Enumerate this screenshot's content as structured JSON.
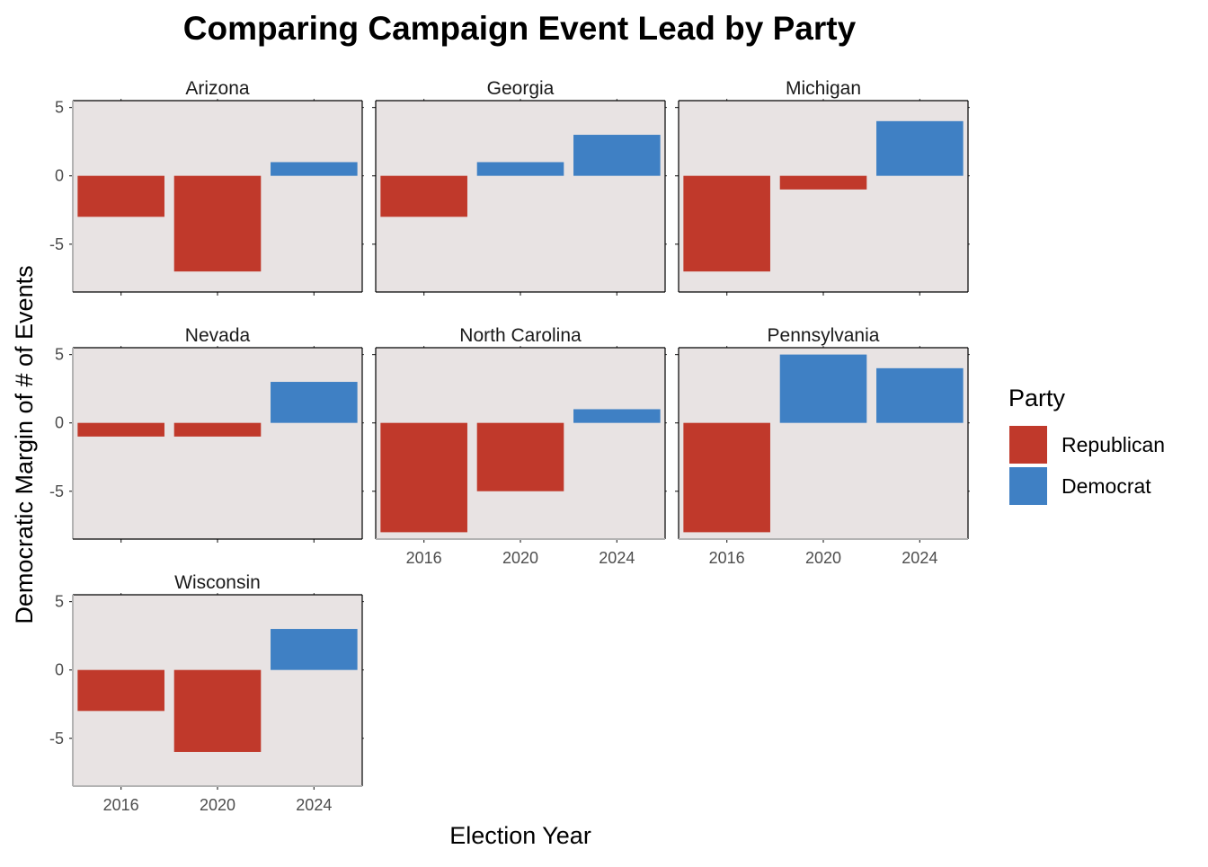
{
  "chart_data": {
    "type": "bar",
    "layout": "faceted",
    "title": "Comparing Campaign Event Lead by Party",
    "xlabel": "Election Year",
    "ylabel": "Democratic Margin of # of Events",
    "categories": [
      "2016",
      "2020",
      "2024"
    ],
    "y_ticks": [
      -5,
      0,
      5
    ],
    "ylim": [
      -8.5,
      5.5
    ],
    "grid": false,
    "legend": {
      "title": "Party",
      "position": "right",
      "entries": [
        {
          "label": "Republican",
          "color": "#c0392b"
        },
        {
          "label": "Democrat",
          "color": "#3f80c4"
        }
      ]
    },
    "panel_background": "#e8e3e3",
    "facets": [
      {
        "name": "Arizona",
        "values": [
          -3,
          -7,
          1
        ]
      },
      {
        "name": "Georgia",
        "values": [
          -3,
          1,
          3
        ]
      },
      {
        "name": "Michigan",
        "values": [
          -7,
          -1,
          4
        ]
      },
      {
        "name": "Nevada",
        "values": [
          -1,
          -1,
          3
        ]
      },
      {
        "name": "North Carolina",
        "values": [
          -8,
          -5,
          1
        ]
      },
      {
        "name": "Pennsylvania",
        "values": [
          -8,
          5,
          4
        ]
      },
      {
        "name": "Wisconsin",
        "values": [
          -3,
          -6,
          3
        ]
      }
    ]
  }
}
